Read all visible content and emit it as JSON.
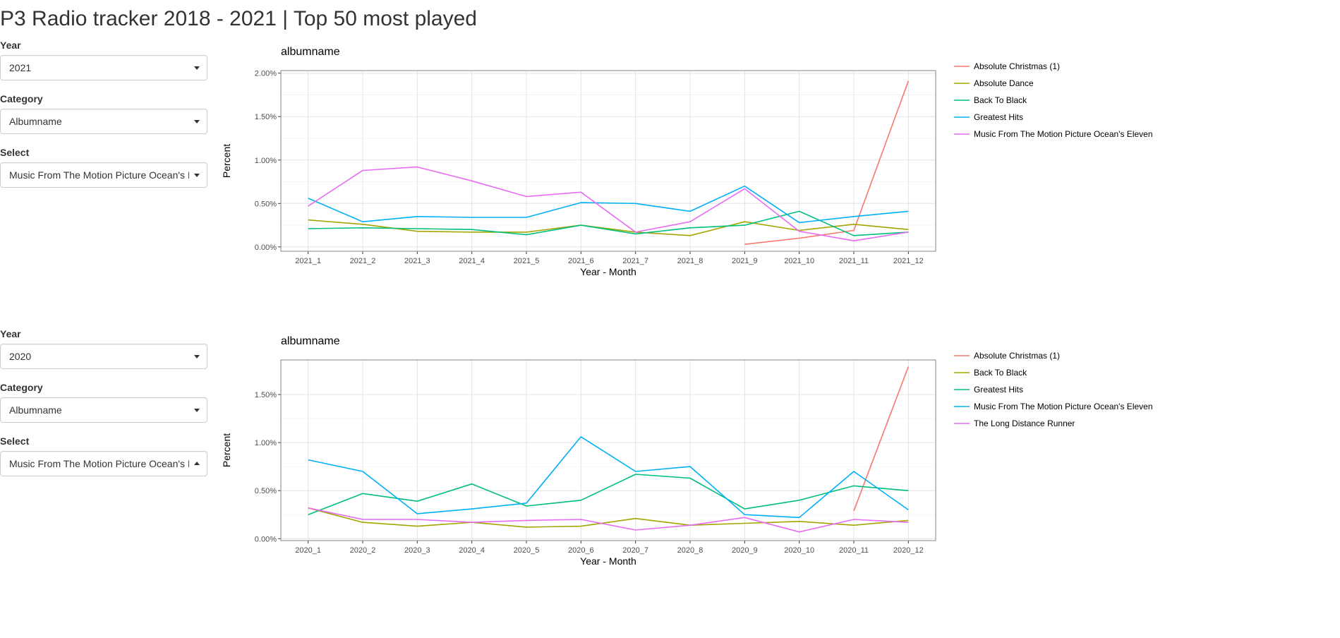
{
  "page_title": "P3 Radio tracker 2018 - 2021 | Top 50 most played",
  "panels": [
    {
      "controls": {
        "year_label": "Year",
        "year_value": "2021",
        "category_label": "Category",
        "category_value": "Albumname",
        "select_label": "Select",
        "select_value": "Music From The Motion Picture Ocean's Eleven",
        "select_open": false
      }
    },
    {
      "controls": {
        "year_label": "Year",
        "year_value": "2020",
        "category_label": "Category",
        "category_value": "Albumname",
        "select_label": "Select",
        "select_value": "Music From The Motion Picture Ocean's Eleven",
        "select_open": true
      }
    }
  ],
  "chart_data": [
    {
      "type": "line",
      "title": "albumname",
      "xlabel": "Year - Month",
      "ylabel": "Percent",
      "categories": [
        "2021_1",
        "2021_2",
        "2021_3",
        "2021_4",
        "2021_5",
        "2021_6",
        "2021_7",
        "2021_8",
        "2021_9",
        "2021_10",
        "2021_11",
        "2021_12"
      ],
      "yticks": [
        0,
        0.5,
        1.0,
        1.5,
        2.0
      ],
      "ytick_labels": [
        "0.00%",
        "0.50%",
        "1.00%",
        "1.50%",
        "2.00%"
      ],
      "ylim": [
        -0.05,
        2.03
      ],
      "grid": true,
      "legend_position": "right",
      "series": [
        {
          "name": "Absolute Christmas (1)",
          "color": "#F8766D",
          "values": [
            null,
            null,
            null,
            null,
            null,
            null,
            null,
            null,
            0.03,
            0.1,
            0.19,
            1.91
          ]
        },
        {
          "name": "Absolute Dance",
          "color": "#A3A500",
          "values": [
            0.31,
            0.26,
            0.18,
            0.17,
            0.17,
            0.25,
            0.17,
            0.13,
            0.29,
            0.19,
            0.26,
            0.2
          ]
        },
        {
          "name": "Back To Black",
          "color": "#00BF7D",
          "values": [
            0.21,
            0.22,
            0.21,
            0.2,
            0.14,
            0.25,
            0.15,
            0.22,
            0.25,
            0.41,
            0.13,
            0.17
          ]
        },
        {
          "name": "Greatest Hits",
          "color": "#00B0F6",
          "values": [
            0.56,
            0.29,
            0.35,
            0.34,
            0.34,
            0.51,
            0.5,
            0.41,
            0.7,
            0.28,
            0.35,
            0.41
          ]
        },
        {
          "name": "Music From The Motion Picture Ocean's Eleven",
          "color": "#E76BF3",
          "values": [
            0.47,
            0.88,
            0.92,
            0.76,
            0.58,
            0.63,
            0.17,
            0.29,
            0.67,
            0.18,
            0.07,
            0.17
          ]
        }
      ]
    },
    {
      "type": "line",
      "title": "albumname",
      "xlabel": "Year - Month",
      "ylabel": "Percent",
      "categories": [
        "2020_1",
        "2020_2",
        "2020_3",
        "2020_4",
        "2020_5",
        "2020_6",
        "2020_7",
        "2020_8",
        "2020_9",
        "2020_10",
        "2020_11",
        "2020_12"
      ],
      "yticks": [
        0,
        0.5,
        1.0,
        1.5
      ],
      "ytick_labels": [
        "0.00%",
        "0.50%",
        "1.00%",
        "1.50%"
      ],
      "ylim": [
        -0.02,
        1.86
      ],
      "grid": true,
      "legend_position": "right",
      "series": [
        {
          "name": "Absolute Christmas (1)",
          "color": "#F8766D",
          "values": [
            null,
            null,
            null,
            null,
            null,
            null,
            null,
            null,
            null,
            null,
            0.29,
            1.79
          ]
        },
        {
          "name": "Back To Black",
          "color": "#A3A500",
          "values": [
            0.32,
            0.17,
            0.13,
            0.17,
            0.12,
            0.13,
            0.21,
            0.14,
            0.16,
            0.18,
            0.14,
            0.19
          ]
        },
        {
          "name": "Greatest Hits",
          "color": "#00BF7D",
          "values": [
            0.25,
            0.47,
            0.39,
            0.57,
            0.34,
            0.4,
            0.67,
            0.63,
            0.31,
            0.4,
            0.55,
            0.5
          ]
        },
        {
          "name": "Music From The Motion Picture Ocean's Eleven",
          "color": "#00B0F6",
          "values": [
            0.82,
            0.7,
            0.26,
            0.31,
            0.37,
            1.06,
            0.7,
            0.75,
            0.25,
            0.22,
            0.7,
            0.3
          ]
        },
        {
          "name": "The Long Distance Runner",
          "color": "#E76BF3",
          "values": [
            0.32,
            0.2,
            0.2,
            0.17,
            0.19,
            0.2,
            0.09,
            0.14,
            0.22,
            0.07,
            0.2,
            0.17
          ]
        }
      ]
    }
  ]
}
